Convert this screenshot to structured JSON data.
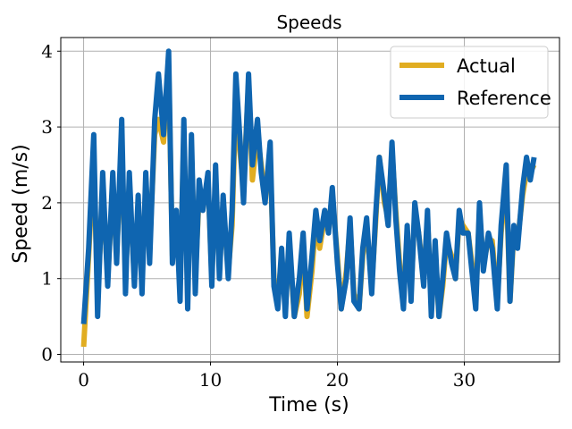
{
  "chart_data": {
    "type": "line",
    "title": "Speeds",
    "xlabel": "Time (s)",
    "ylabel": "Speed (m/s)",
    "xlim": [
      -1.8,
      37.5
    ],
    "ylim": [
      -0.1,
      4.18
    ],
    "x_ticks": [
      0,
      10,
      20,
      30
    ],
    "y_ticks": [
      0,
      1,
      2,
      3,
      4
    ],
    "grid": true,
    "legend_position": "top-right",
    "series": [
      {
        "name": "Actual",
        "color": "#e1ad21",
        "x": [
          0,
          0.4,
          0.8,
          1.1,
          1.5,
          1.9,
          2.3,
          2.6,
          3.0,
          3.3,
          3.6,
          4.0,
          4.3,
          4.6,
          4.9,
          5.2,
          5.6,
          5.9,
          6.3,
          6.7,
          7.0,
          7.3,
          7.6,
          7.9,
          8.2,
          8.5,
          8.8,
          9.1,
          9.4,
          9.8,
          10.1,
          10.4,
          10.7,
          11.0,
          11.4,
          11.7,
          12.0,
          12.3,
          12.6,
          13.0,
          13.3,
          13.7,
          14.0,
          14.3,
          14.7,
          15.0,
          15.3,
          15.6,
          15.9,
          16.2,
          16.6,
          17.0,
          17.3,
          17.6,
          18.0,
          18.3,
          18.6,
          19.0,
          19.3,
          19.6,
          20.0,
          20.3,
          20.7,
          21.0,
          21.3,
          21.7,
          22.0,
          22.3,
          22.7,
          23.0,
          23.3,
          23.7,
          24.0,
          24.3,
          24.6,
          24.9,
          25.2,
          25.5,
          25.8,
          26.1,
          26.4,
          26.8,
          27.1,
          27.4,
          27.7,
          28.0,
          28.3,
          28.6,
          29.0,
          29.3,
          29.6,
          29.9,
          30.3,
          30.6,
          30.9,
          31.2,
          31.5,
          31.9,
          32.2,
          32.6,
          32.9,
          33.3,
          33.6,
          33.9,
          34.2,
          34.6,
          34.9,
          35.2,
          35.5
        ],
        "values": [
          0.1,
          1.3,
          2.6,
          0.7,
          2.2,
          1.0,
          2.2,
          1.3,
          2.8,
          1.0,
          2.2,
          1.0,
          1.9,
          1.0,
          2.2,
          1.4,
          2.9,
          3.1,
          2.8,
          3.8,
          1.3,
          1.7,
          0.9,
          2.9,
          0.8,
          2.7,
          1.0,
          2.1,
          2.0,
          2.3,
          1.0,
          2.3,
          1.2,
          1.9,
          1.1,
          1.7,
          3.4,
          2.7,
          2.2,
          3.6,
          2.3,
          2.9,
          2.5,
          2.1,
          2.6,
          1.0,
          0.7,
          1.3,
          0.6,
          1.5,
          0.5,
          0.8,
          1.5,
          0.5,
          1.1,
          1.8,
          1.4,
          1.8,
          1.7,
          2.1,
          1.3,
          0.6,
          1.1,
          1.7,
          0.8,
          0.6,
          1.3,
          1.7,
          0.9,
          1.7,
          2.6,
          2.0,
          1.8,
          2.7,
          1.9,
          1.2,
          0.7,
          1.6,
          0.8,
          1.9,
          1.6,
          1.0,
          1.8,
          0.7,
          1.4,
          0.5,
          0.9,
          1.5,
          1.3,
          1.0,
          1.8,
          1.7,
          1.6,
          1.2,
          0.7,
          1.9,
          1.2,
          1.5,
          1.5,
          0.7,
          1.6,
          2.3,
          0.7,
          1.6,
          1.5,
          2.1,
          2.4,
          2.4,
          2.5
        ]
      },
      {
        "name": "Reference",
        "color": "#0f65b0",
        "x": [
          0,
          0.4,
          0.8,
          1.1,
          1.5,
          1.9,
          2.3,
          2.6,
          3.0,
          3.3,
          3.6,
          4.0,
          4.3,
          4.6,
          4.9,
          5.2,
          5.6,
          5.9,
          6.3,
          6.7,
          7.0,
          7.3,
          7.6,
          7.9,
          8.2,
          8.5,
          8.8,
          9.1,
          9.4,
          9.8,
          10.1,
          10.4,
          10.7,
          11.0,
          11.4,
          11.7,
          12.0,
          12.3,
          12.6,
          13.0,
          13.3,
          13.7,
          14.0,
          14.3,
          14.7,
          15.0,
          15.3,
          15.6,
          15.9,
          16.2,
          16.6,
          17.0,
          17.3,
          17.6,
          18.0,
          18.3,
          18.6,
          19.0,
          19.3,
          19.6,
          20.0,
          20.3,
          20.7,
          21.0,
          21.3,
          21.7,
          22.0,
          22.3,
          22.7,
          23.0,
          23.3,
          23.7,
          24.0,
          24.3,
          24.6,
          24.9,
          25.2,
          25.5,
          25.8,
          26.1,
          26.4,
          26.8,
          27.1,
          27.4,
          27.7,
          28.0,
          28.3,
          28.6,
          29.0,
          29.3,
          29.6,
          29.9,
          30.3,
          30.6,
          30.9,
          31.2,
          31.5,
          31.9,
          32.2,
          32.6,
          32.9,
          33.3,
          33.6,
          33.9,
          34.2,
          34.6,
          34.9,
          35.2,
          35.5
        ],
        "values": [
          0.4,
          1.4,
          2.9,
          0.5,
          2.4,
          0.9,
          2.4,
          1.2,
          3.1,
          0.8,
          2.4,
          0.9,
          2.1,
          0.8,
          2.4,
          1.2,
          3.1,
          3.7,
          2.9,
          4.0,
          1.2,
          1.9,
          0.7,
          3.1,
          0.6,
          2.9,
          0.8,
          2.3,
          1.9,
          2.4,
          0.9,
          2.5,
          1.0,
          2.1,
          1.0,
          1.9,
          3.7,
          2.9,
          2.0,
          3.7,
          2.5,
          3.1,
          2.4,
          2.0,
          2.8,
          0.9,
          0.6,
          1.4,
          0.5,
          1.6,
          0.5,
          1.0,
          1.6,
          0.6,
          1.3,
          1.9,
          1.5,
          1.9,
          1.6,
          2.2,
          1.2,
          0.6,
          1.0,
          1.8,
          0.7,
          0.6,
          1.4,
          1.8,
          0.8,
          1.8,
          2.6,
          2.1,
          1.7,
          2.8,
          1.8,
          1.1,
          0.6,
          1.7,
          0.7,
          2.0,
          1.6,
          0.9,
          1.9,
          0.5,
          1.5,
          0.5,
          1.0,
          1.6,
          1.2,
          1.0,
          1.9,
          1.6,
          1.6,
          1.1,
          0.6,
          2.0,
          1.1,
          1.6,
          1.4,
          0.6,
          1.7,
          2.5,
          0.7,
          1.7,
          1.4,
          2.2,
          2.6,
          2.3,
          2.6
        ]
      }
    ]
  }
}
